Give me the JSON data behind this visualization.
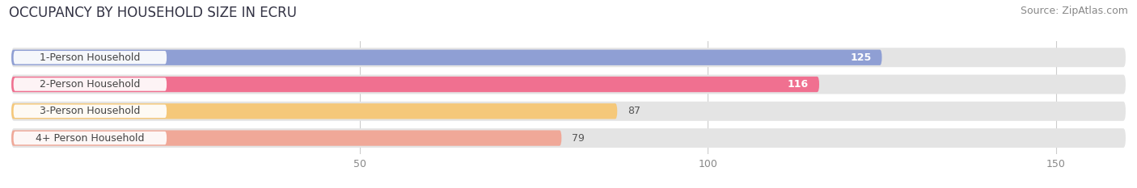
{
  "title": "OCCUPANCY BY HOUSEHOLD SIZE IN ECRU",
  "source": "Source: ZipAtlas.com",
  "categories": [
    "1-Person Household",
    "2-Person Household",
    "3-Person Household",
    "4+ Person Household"
  ],
  "values": [
    125,
    116,
    87,
    79
  ],
  "bar_colors": [
    "#8f9fd4",
    "#f07090",
    "#f5c87a",
    "#f0a898"
  ],
  "bar_bg_color": "#e4e4e4",
  "xlim": [
    0,
    160
  ],
  "xticks": [
    50,
    100,
    150
  ],
  "title_fontsize": 12,
  "source_fontsize": 9,
  "label_fontsize": 9,
  "tick_fontsize": 9,
  "background_color": "#ffffff"
}
